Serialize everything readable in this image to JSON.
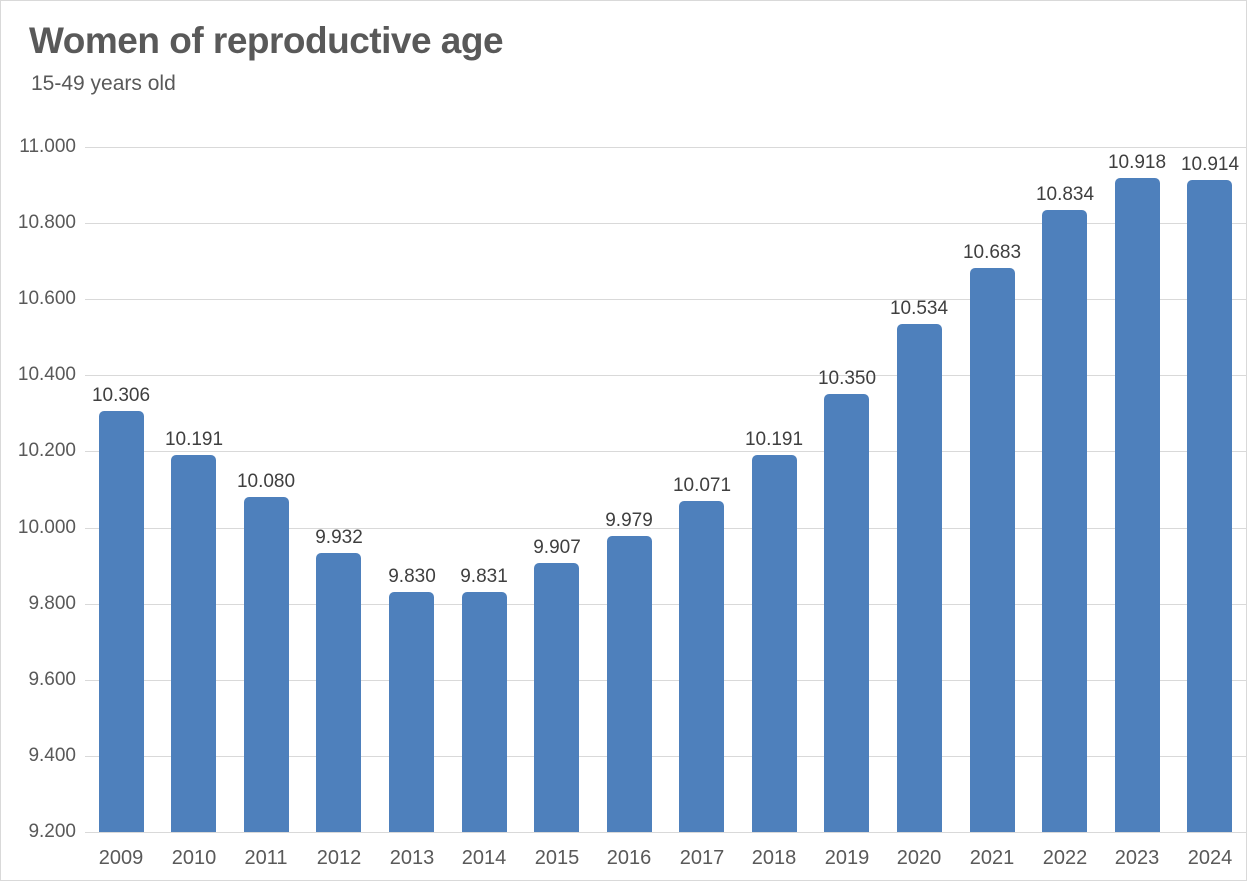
{
  "chart_data": {
    "type": "bar",
    "title": "Women of reproductive age",
    "subtitle": "15-49 years old",
    "categories": [
      "2009",
      "2010",
      "2011",
      "2012",
      "2013",
      "2014",
      "2015",
      "2016",
      "2017",
      "2018",
      "2019",
      "2020",
      "2021",
      "2022",
      "2023",
      "2024"
    ],
    "values": [
      10306,
      10191,
      10080,
      9932,
      9830,
      9831,
      9907,
      9979,
      10071,
      10191,
      10350,
      10534,
      10683,
      10834,
      10918,
      10914
    ],
    "value_labels": [
      "10.306",
      "10.191",
      "10.080",
      "9.932",
      "9.830",
      "9.831",
      "9.907",
      "9.979",
      "10.071",
      "10.191",
      "10.350",
      "10.534",
      "10.683",
      "10.834",
      "10.918",
      "10.914"
    ],
    "xlabel": "",
    "ylabel": "",
    "grid": true,
    "legend": null,
    "y_axis": {
      "min": 9200,
      "max": 11000,
      "tick_step": 200,
      "tick_values": [
        11000,
        10800,
        10600,
        10400,
        10200,
        10000,
        9800,
        9600,
        9400,
        9200
      ],
      "tick_labels": [
        "11.000",
        "10.800",
        "10.600",
        "10.400",
        "10.200",
        "10.000",
        "9.800",
        "9.600",
        "9.400",
        "9.200"
      ]
    },
    "colors": {
      "bar": "#4E80BC",
      "title_text": "#595959",
      "subtitle_text": "#595959",
      "axis_text": "#595959",
      "data_label_text": "#3F3F3F",
      "gridline": "#D9D9D9",
      "frame_border": "#D9D9D9",
      "background": "#FFFFFF"
    }
  }
}
